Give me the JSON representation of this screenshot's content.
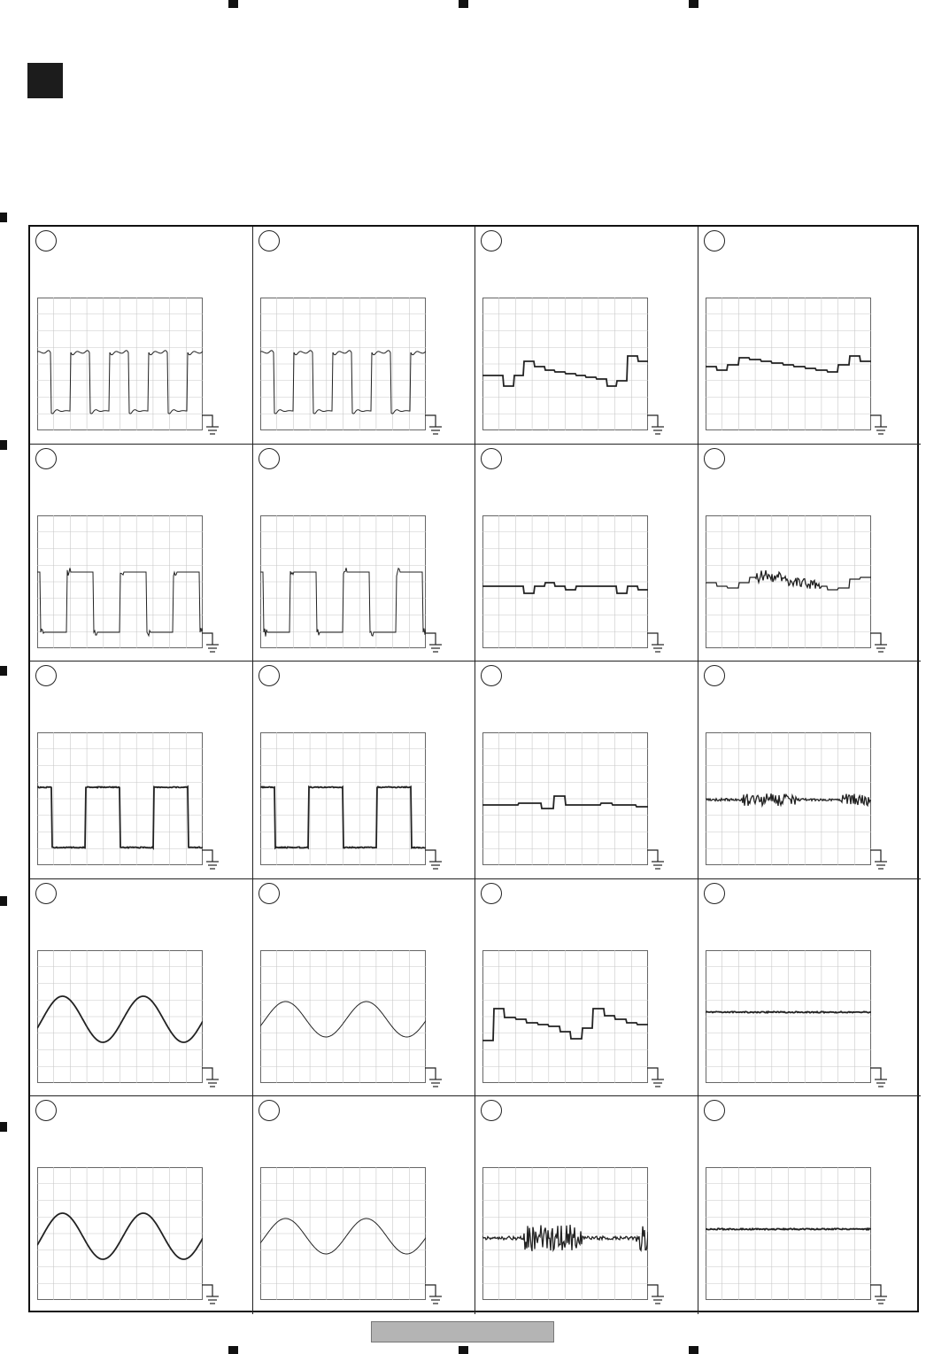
{
  "page": {
    "section_marker": "",
    "footer_label": ""
  },
  "waveforms": [
    {
      "type": "square-ring"
    },
    {
      "type": "square-ring"
    },
    {
      "type": "steps-a"
    },
    {
      "type": "steps-b"
    },
    {
      "type": "square-sharp"
    },
    {
      "type": "square-sharp"
    },
    {
      "type": "steps-c"
    },
    {
      "type": "steps-noisy"
    },
    {
      "type": "square-clean"
    },
    {
      "type": "square-clean"
    },
    {
      "type": "steps-d"
    },
    {
      "type": "flat-noisy"
    },
    {
      "type": "sine-thick"
    },
    {
      "type": "sine-thin"
    },
    {
      "type": "steps-e"
    },
    {
      "type": "flat-high"
    },
    {
      "type": "sine-thick"
    },
    {
      "type": "sine-thin"
    },
    {
      "type": "burst"
    },
    {
      "type": "flat-mid"
    }
  ]
}
